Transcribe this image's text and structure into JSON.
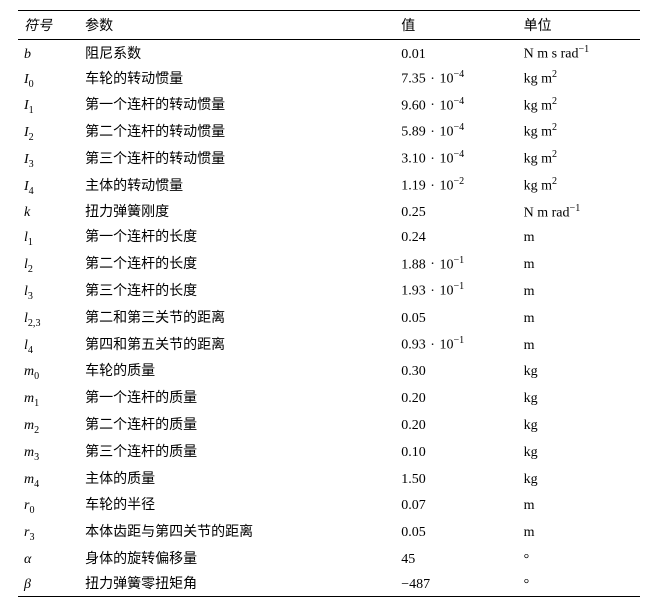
{
  "headers": {
    "symbol": "符号",
    "param": "参数",
    "value": "值",
    "unit": "单位"
  },
  "rows": [
    {
      "sym_base": "b",
      "sym_sub": "",
      "sym_italic_sub": false,
      "param": "阻尼系数",
      "val_main": "0.01",
      "val_exp": "",
      "unit_html": "N m s rad<span class='sup'>−1</span>"
    },
    {
      "sym_base": "I",
      "sym_sub": "0",
      "sym_italic_sub": false,
      "param": "车轮的转动惯量",
      "val_main": "7.35",
      "val_exp": "−4",
      "unit_html": "kg m<span class='sup'>2</span>"
    },
    {
      "sym_base": "I",
      "sym_sub": "1",
      "sym_italic_sub": false,
      "param": "第一个连杆的转动惯量",
      "val_main": "9.60",
      "val_exp": "−4",
      "unit_html": "kg m<span class='sup'>2</span>"
    },
    {
      "sym_base": "I",
      "sym_sub": "2",
      "sym_italic_sub": false,
      "param": "第二个连杆的转动惯量",
      "val_main": "5.89",
      "val_exp": "−4",
      "unit_html": "kg m<span class='sup'>2</span>"
    },
    {
      "sym_base": "I",
      "sym_sub": "3",
      "sym_italic_sub": false,
      "param": "第三个连杆的转动惯量",
      "val_main": "3.10",
      "val_exp": "−4",
      "unit_html": "kg m<span class='sup'>2</span>"
    },
    {
      "sym_base": "I",
      "sym_sub": "4",
      "sym_italic_sub": false,
      "param": "主体的转动惯量",
      "val_main": "1.19",
      "val_exp": "−2",
      "unit_html": "kg m<span class='sup'>2</span>"
    },
    {
      "sym_base": "k",
      "sym_sub": "",
      "sym_italic_sub": false,
      "param": "扭力弹簧刚度",
      "val_main": "0.25",
      "val_exp": "",
      "unit_html": "N m rad<span class='sup'>−1</span>"
    },
    {
      "sym_base": "l",
      "sym_sub": "1",
      "sym_italic_sub": false,
      "param": "第一个连杆的长度",
      "val_main": "0.24",
      "val_exp": "",
      "unit_html": "m"
    },
    {
      "sym_base": "l",
      "sym_sub": "2",
      "sym_italic_sub": false,
      "param": "第二个连杆的长度",
      "val_main": "1.88",
      "val_exp": "−1",
      "unit_html": "m"
    },
    {
      "sym_base": "l",
      "sym_sub": "3",
      "sym_italic_sub": false,
      "param": "第三个连杆的长度",
      "val_main": "1.93",
      "val_exp": "−1",
      "unit_html": "m"
    },
    {
      "sym_base": "l",
      "sym_sub": "2,3",
      "sym_italic_sub": false,
      "param": "第二和第三关节的距离",
      "val_main": "0.05",
      "val_exp": "",
      "unit_html": "m"
    },
    {
      "sym_base": "l",
      "sym_sub": "4",
      "sym_italic_sub": false,
      "param": "第四和第五关节的距离",
      "val_main": "0.93",
      "val_exp": "−1",
      "unit_html": "m"
    },
    {
      "sym_base": "m",
      "sym_sub": "0",
      "sym_italic_sub": false,
      "param": "车轮的质量",
      "val_main": "0.30",
      "val_exp": "",
      "unit_html": "kg"
    },
    {
      "sym_base": "m",
      "sym_sub": "1",
      "sym_italic_sub": false,
      "param": "第一个连杆的质量",
      "val_main": "0.20",
      "val_exp": "",
      "unit_html": "kg"
    },
    {
      "sym_base": "m",
      "sym_sub": "2",
      "sym_italic_sub": false,
      "param": "第二个连杆的质量",
      "val_main": "0.20",
      "val_exp": "",
      "unit_html": "kg"
    },
    {
      "sym_base": "m",
      "sym_sub": "3",
      "sym_italic_sub": false,
      "param": "第三个连杆的质量",
      "val_main": "0.10",
      "val_exp": "",
      "unit_html": "kg"
    },
    {
      "sym_base": "m",
      "sym_sub": "4",
      "sym_italic_sub": false,
      "param": "主体的质量",
      "val_main": "1.50",
      "val_exp": "",
      "unit_html": "kg"
    },
    {
      "sym_base": "r",
      "sym_sub": "0",
      "sym_italic_sub": false,
      "param": "车轮的半径",
      "val_main": "0.07",
      "val_exp": "",
      "unit_html": "m"
    },
    {
      "sym_base": "r",
      "sym_sub": "3",
      "sym_italic_sub": false,
      "param": "本体齿距与第四关节的距离",
      "val_main": "0.05",
      "val_exp": "",
      "unit_html": "m"
    },
    {
      "sym_base": "α",
      "sym_sub": "",
      "sym_italic_sub": false,
      "param": "身体的旋转偏移量",
      "val_main": "45",
      "val_exp": "",
      "unit_html": "°"
    },
    {
      "sym_base": "β",
      "sym_sub": "",
      "sym_italic_sub": false,
      "param": "扭力弹簧零扭矩角",
      "val_main": "−487",
      "val_exp": "",
      "unit_html": "°"
    }
  ]
}
